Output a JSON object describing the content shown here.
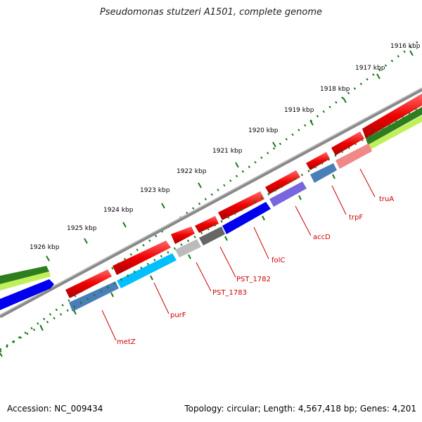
{
  "title": "Pseudomonas stutzeri A1501, complete genome",
  "footer": {
    "accession": "Accession: NC_009434",
    "topology": "Topology: circular; Length: 4,567,418 bp; Genes: 4,201"
  },
  "scale_ticks": [
    {
      "label": "1916 kbp"
    },
    {
      "label": "1917 kbp"
    },
    {
      "label": "1918 kbp"
    },
    {
      "label": "1919 kbp"
    },
    {
      "label": "1920 kbp"
    },
    {
      "label": "1921 kbp"
    },
    {
      "label": "1922 kbp"
    },
    {
      "label": "1923 kbp"
    },
    {
      "label": "1924 kbp"
    },
    {
      "label": "1925 kbp"
    },
    {
      "label": "1926 kbp"
    }
  ],
  "gene_labels": [
    "truA",
    "trpF",
    "accD",
    "folC",
    "PST_1782",
    "PST_1783",
    "purF",
    "metZ"
  ],
  "colors": {
    "forward_genes": "#ee0000",
    "tick_green": "#1a7a1a",
    "backbone": "#888888",
    "label_red": "#cc0000",
    "track_dark_green": "#2e7d1e",
    "track_light_green": "#bff05a",
    "blue": "#0000ee",
    "cyan": "#00bfff",
    "steel_blue": "#4a7eb8",
    "purple": "#7766dd",
    "pink": "#f08888",
    "light_gray": "#bbbbbb",
    "dark_gray": "#666666"
  }
}
